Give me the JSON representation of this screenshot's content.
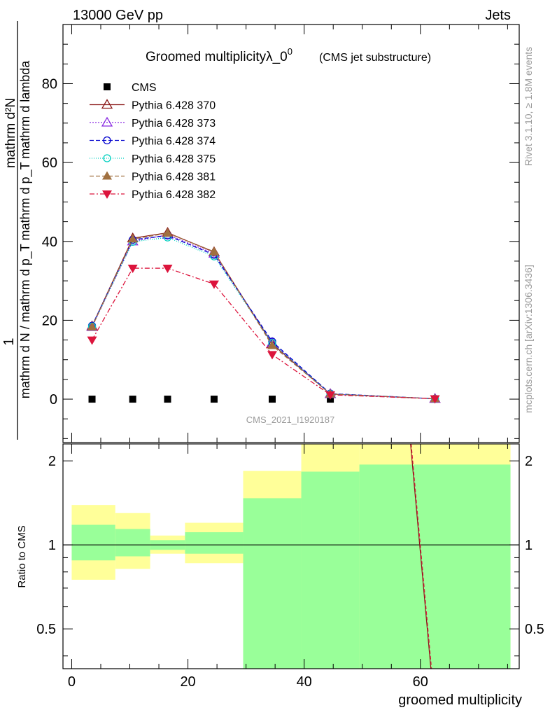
{
  "header": {
    "left": "13000 GeV pp",
    "right": "Jets"
  },
  "side_labels": {
    "rivet": "Rivet 3.1.10, ≥ 1.8M events",
    "mcplots": "mcplots.cern.ch [arXiv:1306.3436]"
  },
  "colors": {
    "band_inner": "#99ff99",
    "band_outer": "#ffff99",
    "cms": "#000000",
    "p370": "#8b1a1a",
    "p373": "#8a2be2",
    "p374": "#0000cd",
    "p375": "#00d0c0",
    "p381": "#a07040",
    "p382": "#dc143c"
  },
  "chart_data": [
    {
      "type": "line",
      "title": "Groomed multiplicityλ_0",
      "title_superscript": "0",
      "subtitle": "(CMS jet substructure)",
      "watermark": "CMS_2021_I1920187",
      "ylabel_numerator": "1",
      "ylabel_denominator": "mathrm d N / mathrm d p_T mathrm d p_T mathrm d lambda",
      "ylabel_numerator_dn": "mathrm d²N",
      "xlim": [
        -1.5,
        77
      ],
      "ylim": [
        -11,
        95
      ],
      "yticks": [
        0,
        20,
        40,
        60,
        80
      ],
      "x": [
        3.5,
        10.5,
        16.5,
        24.5,
        34.5,
        44.5,
        62.5
      ],
      "series": [
        {
          "name": "CMS",
          "marker": "square",
          "line": "none",
          "values": [
            0,
            0,
            0,
            0,
            0,
            0,
            0
          ]
        },
        {
          "name": "Pythia 6.428 370",
          "marker": "triangle-open",
          "line": "solid",
          "values": [
            18.5,
            40.8,
            42.2,
            37.3,
            14.0,
            1.3,
            0.1
          ]
        },
        {
          "name": "Pythia 6.428 373",
          "marker": "triangle-open",
          "line": "dotted",
          "values": [
            18.3,
            40.0,
            41.7,
            36.9,
            14.3,
            1.3,
            0.1
          ]
        },
        {
          "name": "Pythia 6.428 374",
          "marker": "circle-open",
          "line": "dashed",
          "values": [
            18.6,
            40.4,
            41.5,
            36.6,
            14.6,
            1.4,
            0.1
          ]
        },
        {
          "name": "Pythia 6.428 375",
          "marker": "circle-open",
          "line": "dotted-fine",
          "values": [
            18.4,
            39.9,
            41.0,
            36.2,
            14.2,
            1.3,
            0.1
          ]
        },
        {
          "name": "Pythia 6.428 381",
          "marker": "triangle-filled",
          "line": "dashed",
          "values": [
            18.3,
            40.6,
            42.1,
            37.4,
            13.6,
            1.3,
            0.1
          ]
        },
        {
          "name": "Pythia 6.428 382",
          "marker": "triangle-down-filled",
          "line": "dashdot",
          "values": [
            15.0,
            33.2,
            33.2,
            29.2,
            11.3,
            1.1,
            0.1
          ]
        }
      ]
    },
    {
      "type": "area",
      "ylabel": "Ratio to CMS",
      "xlabel": "groomed multiplicity",
      "xlim": [
        -1.5,
        77
      ],
      "ylim": [
        0.36,
        2.3
      ],
      "log_y": true,
      "yticks": [
        0.5,
        1,
        2
      ],
      "ytick_labels": [
        "0.5",
        "1",
        "2"
      ],
      "xticks": [
        0,
        20,
        40,
        60
      ],
      "reference_line": 1,
      "bins": [
        {
          "lo": 0,
          "hi": 7.5,
          "inner": [
            0.88,
            1.18
          ],
          "outer": [
            0.75,
            1.39
          ]
        },
        {
          "lo": 7.5,
          "hi": 13.5,
          "inner": [
            0.91,
            1.14
          ],
          "outer": [
            0.82,
            1.3
          ]
        },
        {
          "lo": 13.5,
          "hi": 19.5,
          "inner": [
            0.96,
            1.04
          ],
          "outer": [
            0.93,
            1.08
          ]
        },
        {
          "lo": 19.5,
          "hi": 29.5,
          "inner": [
            0.93,
            1.11
          ],
          "outer": [
            0.86,
            1.2
          ]
        },
        {
          "lo": 29.5,
          "hi": 39.5,
          "inner": [
            0.36,
            1.47
          ],
          "outer": [
            0.36,
            1.84
          ]
        },
        {
          "lo": 39.5,
          "hi": 49.5,
          "inner": [
            0.36,
            1.83
          ],
          "outer": [
            0.36,
            2.3
          ]
        },
        {
          "lo": 49.5,
          "hi": 75.5,
          "inner": [
            0.36,
            1.94
          ],
          "outer": [
            0.36,
            2.3
          ]
        }
      ],
      "ratio_line": {
        "from": [
          58.3,
          2.3
        ],
        "to": [
          61.8,
          0.36
        ]
      }
    }
  ]
}
